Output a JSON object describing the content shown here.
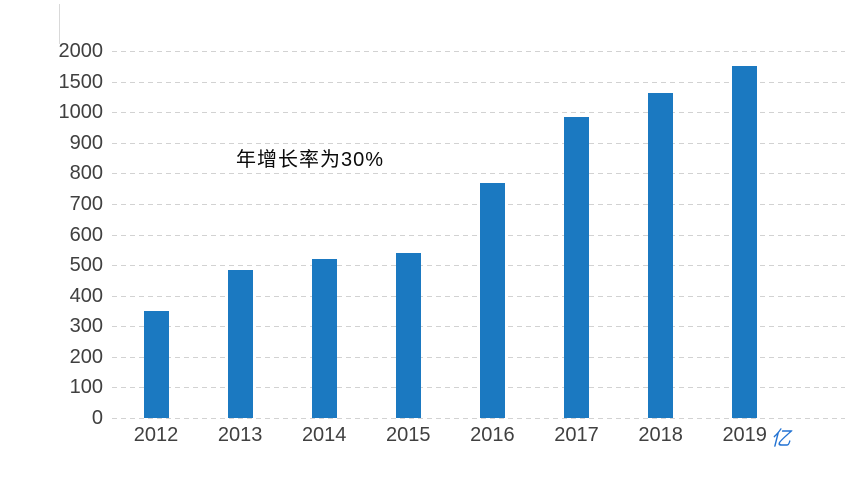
{
  "chart_data": {
    "type": "bar",
    "title": "",
    "categories": [
      "2012",
      "2013",
      "2014",
      "2015",
      "2016",
      "2017",
      "2018",
      "2019"
    ],
    "values": [
      350,
      485,
      520,
      540,
      770,
      985,
      1320,
      1750
    ],
    "series_count": 1,
    "xlabel": "",
    "ylabel": "",
    "unit_label": "亿",
    "annotation": "年增长率为30%",
    "y_ticks": [
      0,
      100,
      200,
      300,
      400,
      500,
      600,
      700,
      800,
      900,
      1000,
      1500,
      2000
    ],
    "y_axis_scale_note": "ticks evenly spaced; segment 1000-1500-2000 compressed (non-linear)",
    "grid": "dashed horizontal gridlines",
    "legend": "none",
    "colors": {
      "bar": "#1B79C1",
      "gridline": "#d2d2d2",
      "tick_label": "#404040",
      "annotation": "#0a0a0a",
      "unit_label": "#2373d3",
      "background": "#ffffff"
    }
  }
}
